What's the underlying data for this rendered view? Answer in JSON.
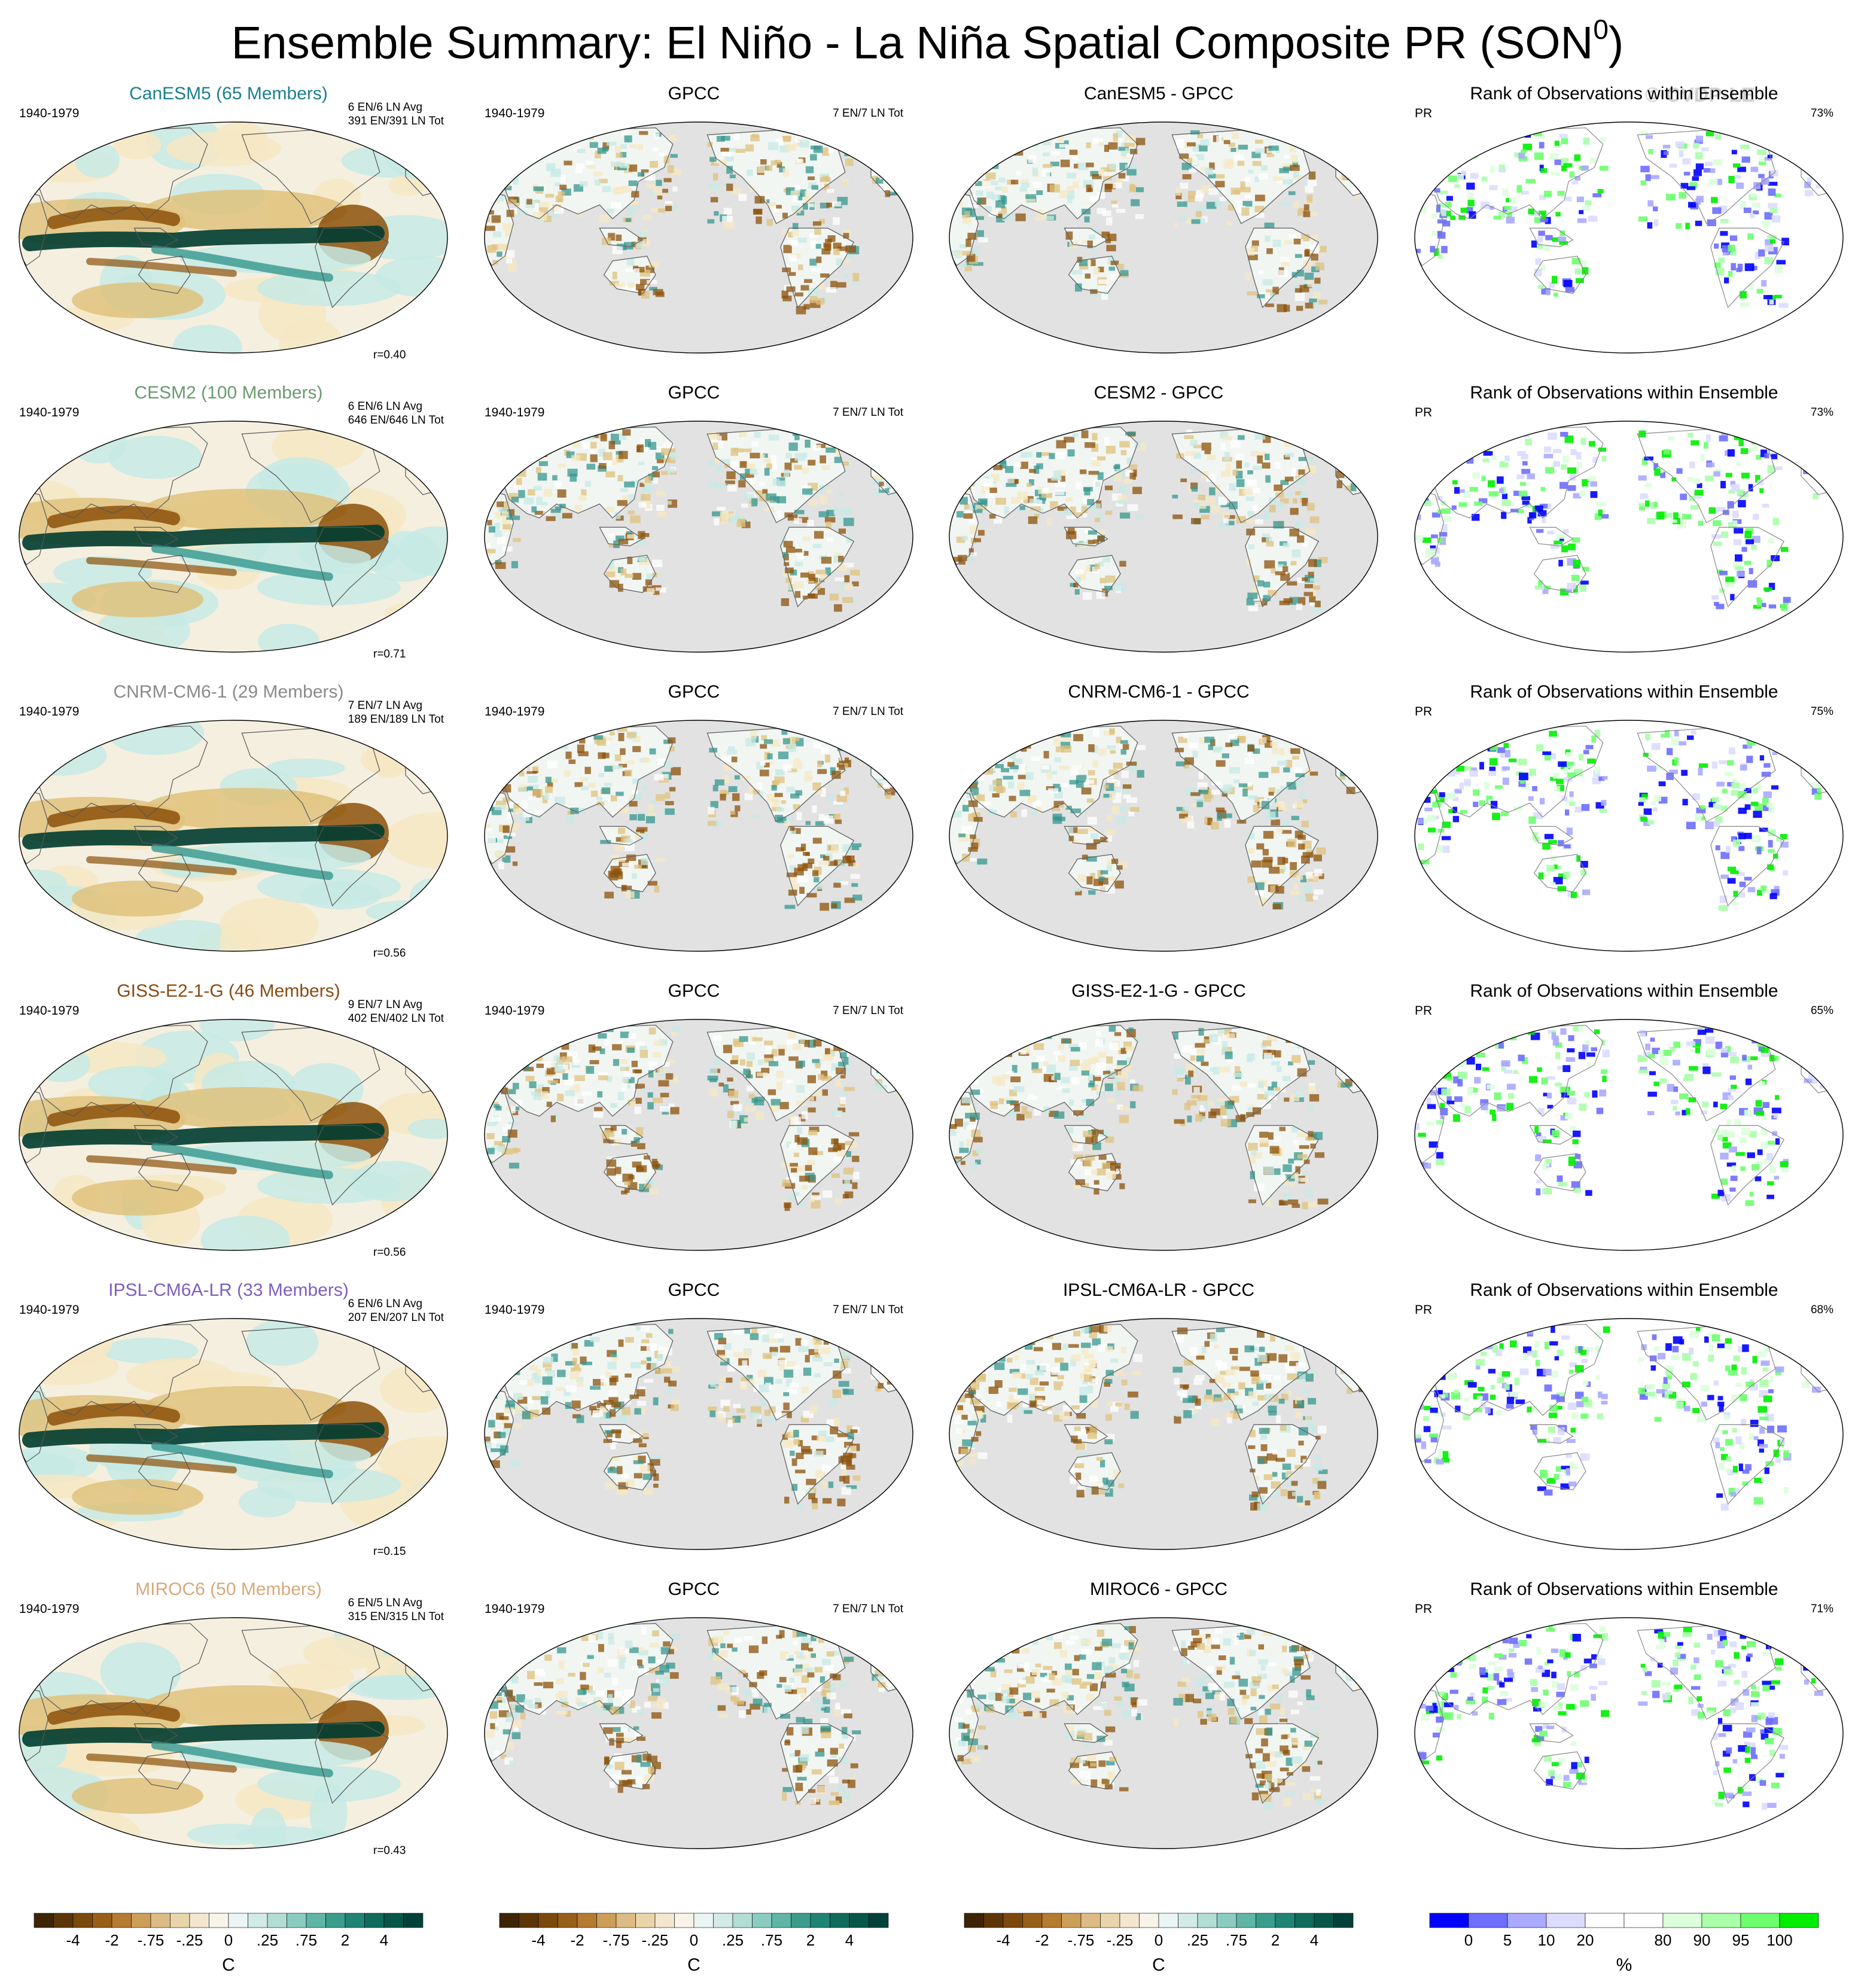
{
  "figure": {
    "title": "Ensemble Summary: El Niño - La Niña Spatial Composite PR (SON",
    "title_superscript": "0",
    "title_close": ")",
    "watermark": "© CVDP-LE"
  },
  "colors": {
    "brown_dark": "#543005",
    "brown": "#8c510a",
    "tan": "#dfc27d",
    "cream": "#f6e8c3",
    "white": "#ffffff",
    "teal_light": "#c7eae5",
    "teal": "#35978f",
    "teal_dark": "#003c30",
    "land_mask": "#e2e2e2",
    "rank_blue": "#0000ff",
    "rank_green": "#00ee00"
  },
  "rows": [
    {
      "model": "CanESM5 (65 Members)",
      "model_color": "#1b7f91",
      "period": "1940-1979",
      "counts": "6 EN/6 LN Avg\n391 EN/391 LN Tot",
      "r": "r=0.40",
      "obs_title": "GPCC",
      "obs_period": "1940-1979",
      "obs_counts": "7 EN/7 LN Tot",
      "diff_title": "CanESM5 - GPCC",
      "rank_title": "Rank of Observations within Ensemble",
      "rank_var": "PR",
      "rank_pct": "73%"
    },
    {
      "model": "CESM2 (100 Members)",
      "model_color": "#6b9a6f",
      "period": "1940-1979",
      "counts": "6 EN/6 LN Avg\n646 EN/646 LN Tot",
      "r": "r=0.71",
      "obs_title": "GPCC",
      "obs_period": "1940-1979",
      "obs_counts": "7 EN/7 LN Tot",
      "diff_title": "CESM2 - GPCC",
      "rank_title": "Rank of Observations within Ensemble",
      "rank_var": "PR",
      "rank_pct": "73%"
    },
    {
      "model": "CNRM-CM6-1 (29 Members)",
      "model_color": "#8a8a8a",
      "period": "1940-1979",
      "counts": "7 EN/7 LN Avg\n189 EN/189 LN Tot",
      "r": "r=0.56",
      "obs_title": "GPCC",
      "obs_period": "1940-1979",
      "obs_counts": "7 EN/7 LN Tot",
      "diff_title": "CNRM-CM6-1 - GPCC",
      "rank_title": "Rank of Observations within Ensemble",
      "rank_var": "PR",
      "rank_pct": "75%"
    },
    {
      "model": "GISS-E2-1-G (46 Members)",
      "model_color": "#8a4a12",
      "period": "1940-1979",
      "counts": "9 EN/7 LN Avg\n402 EN/402 LN Tot",
      "r": "r=0.56",
      "obs_title": "GPCC",
      "obs_period": "1940-1979",
      "obs_counts": "7 EN/7 LN Tot",
      "diff_title": "GISS-E2-1-G - GPCC",
      "rank_title": "Rank of Observations within Ensemble",
      "rank_var": "PR",
      "rank_pct": "65%"
    },
    {
      "model": "IPSL-CM6A-LR (33 Members)",
      "model_color": "#7d5fbf",
      "period": "1940-1979",
      "counts": "6 EN/6 LN Avg\n207 EN/207 LN Tot",
      "r": "r=0.15",
      "obs_title": "GPCC",
      "obs_period": "1940-1979",
      "obs_counts": "7 EN/7 LN Tot",
      "diff_title": "IPSL-CM6A-LR - GPCC",
      "rank_title": "Rank of Observations within Ensemble",
      "rank_var": "PR",
      "rank_pct": "68%"
    },
    {
      "model": "MIROC6 (50 Members)",
      "model_color": "#d7a97a",
      "period": "1940-1979",
      "counts": "6 EN/5 LN Avg\n315 EN/315 LN Tot",
      "r": "r=0.43",
      "obs_title": "GPCC",
      "obs_period": "1940-1979",
      "obs_counts": "7 EN/7 LN Tot",
      "diff_title": "MIROC6 - GPCC",
      "rank_title": "Rank of Observations within Ensemble",
      "rank_var": "PR",
      "rank_pct": "71%"
    }
  ],
  "colorbars": {
    "precip": {
      "unit": "C",
      "labels": [
        "-4",
        "-2",
        "-.75",
        "-.25",
        "0",
        ".25",
        ".75",
        "2",
        "4"
      ],
      "colors": [
        "#3d2405",
        "#5c3608",
        "#7a4a0c",
        "#985f18",
        "#b57b30",
        "#cc9e57",
        "#dcbc84",
        "#ead5ab",
        "#f3e8cf",
        "#f8f4ea",
        "#ebf5f3",
        "#d2ebe6",
        "#b2ddd5",
        "#8bccc0",
        "#5fb5a6",
        "#3b9c8c",
        "#1f8474",
        "#0f6b5c",
        "#07564a",
        "#02413a"
      ]
    },
    "rank": {
      "unit": "%",
      "labels": [
        "0",
        "5",
        "10",
        "20",
        "80",
        "90",
        "95",
        "100"
      ],
      "colors": [
        "#0000ff",
        "#6e6eff",
        "#aaaaff",
        "#dcdcff",
        "#ffffff",
        "#ffffff",
        "#dcffdc",
        "#aaffaa",
        "#6eff6e",
        "#00ee00"
      ]
    }
  },
  "chart_data": [
    {
      "type": "heatmap",
      "panel": "model composite",
      "title": "CanESM5 (65 Members)",
      "legend_unit": "C",
      "tick_labels": [
        "-4",
        "-2",
        "-.75",
        "-.25",
        "0",
        ".25",
        ".75",
        "2",
        "4"
      ]
    },
    {
      "type": "heatmap",
      "panel": "observations",
      "title": "GPCC",
      "legend_unit": "C"
    },
    {
      "type": "heatmap",
      "panel": "difference",
      "title": "CanESM5 - GPCC",
      "legend_unit": "C"
    },
    {
      "type": "heatmap",
      "panel": "rank",
      "title": "Rank of Observations within Ensemble",
      "legend_unit": "%",
      "tick_labels": [
        "0",
        "5",
        "10",
        "20",
        "80",
        "90",
        "95",
        "100"
      ]
    }
  ]
}
